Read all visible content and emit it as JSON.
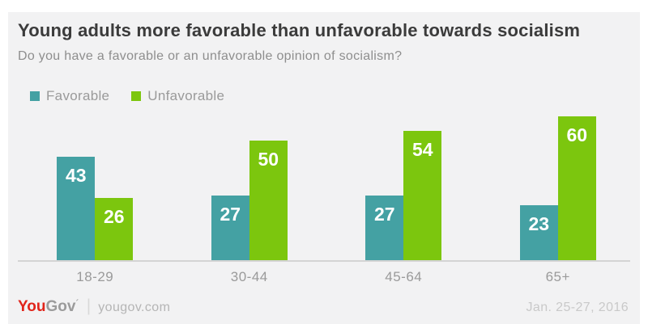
{
  "header": {
    "title": "Young adults more favorable than unfavorable towards socialism",
    "subtitle": "Do you have a favorable or an unfavorable opinion of socialism?"
  },
  "chart_data": {
    "type": "bar",
    "title": "Young adults more favorable than unfavorable towards socialism",
    "subtitle": "Do you have a favorable or an unfavorable opinion of socialism?",
    "categories": [
      "18-29",
      "30-44",
      "45-64",
      "65+"
    ],
    "series": [
      {
        "name": "Favorable",
        "color": "#44a1a3",
        "values": [
          43,
          27,
          27,
          23
        ]
      },
      {
        "name": "Unfavorable",
        "color": "#7cc60e",
        "values": [
          26,
          50,
          54,
          60
        ]
      }
    ],
    "unit": "percent",
    "ylim": [
      0,
      60
    ],
    "grid": false,
    "value_labels": "inside-top",
    "legend_position": "top-left",
    "xlabel": "",
    "ylabel": ""
  },
  "footer": {
    "brand_you": "You",
    "brand_gov": "Gov",
    "brand_mark": "´",
    "divider": "|",
    "site": "yougov.com",
    "date": "Jan. 25-27, 2016"
  },
  "colors": {
    "page_bg": "#ffffff",
    "panel_bg": "#f2f2f3",
    "title_text": "#3b3b3b",
    "subtitle_text": "#8e8e8e",
    "axis_line": "#d4d4d4",
    "axis_label": "#9a9a9a",
    "legend_label": "#9a9a9a",
    "favorable": "#44a1a3",
    "unfavorable": "#7cc60e",
    "bar_value_text": "#ffffff",
    "brand_red": "#e1251b",
    "brand_gray": "#9b9b9b",
    "site_text": "#b5b5b5",
    "date_text": "#c9c9c9"
  }
}
